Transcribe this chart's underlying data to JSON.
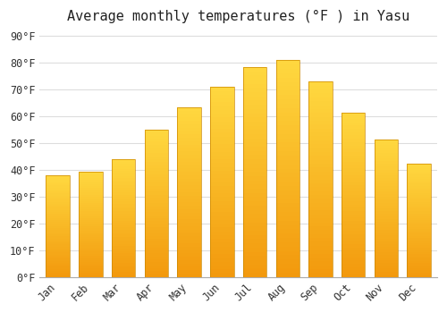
{
  "title": "Average monthly temperatures (°F ) in Yasu",
  "months": [
    "Jan",
    "Feb",
    "Mar",
    "Apr",
    "May",
    "Jun",
    "Jul",
    "Aug",
    "Sep",
    "Oct",
    "Nov",
    "Dec"
  ],
  "values": [
    38,
    39.5,
    44,
    55,
    63.5,
    71,
    78.5,
    81,
    73,
    61.5,
    51.5,
    42.5
  ],
  "bar_color_main": "#FFA500",
  "bar_color_top": "#FFCC44",
  "bar_color_bottom": "#E07800",
  "bar_edge_color": "#CC8800",
  "bar_edge_width": 0.5,
  "background_color": "#ffffff",
  "grid_color": "#dddddd",
  "yticks": [
    0,
    10,
    20,
    30,
    40,
    50,
    60,
    70,
    80,
    90
  ],
  "ylim": [
    0,
    93
  ],
  "title_fontsize": 11,
  "tick_fontsize": 8.5,
  "font_color": "#333333",
  "title_color": "#222222"
}
